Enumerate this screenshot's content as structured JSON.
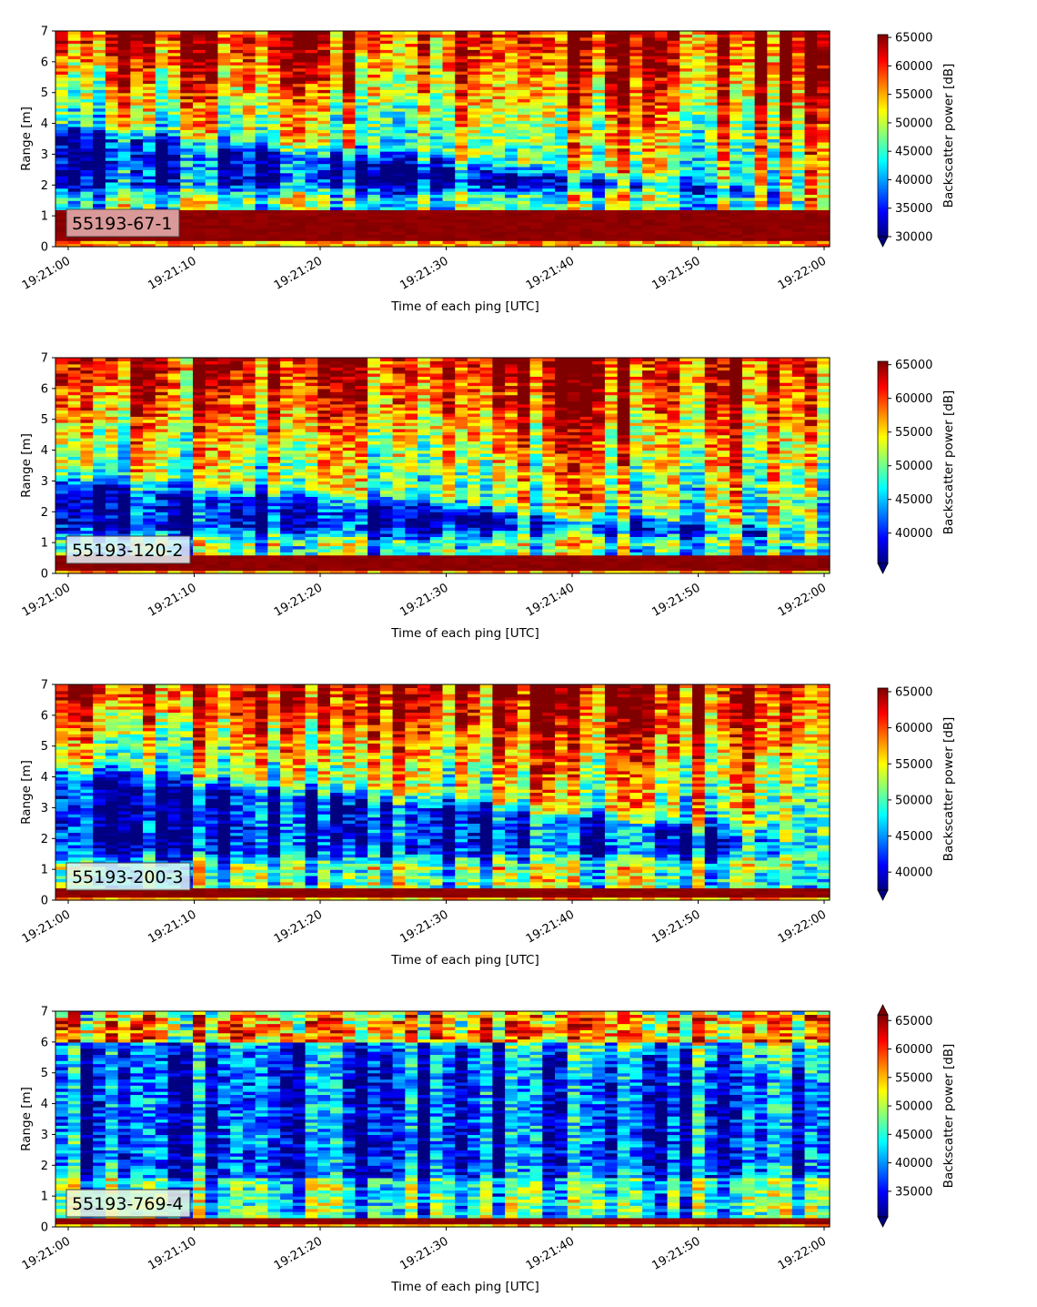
{
  "chart_data": [
    {
      "type": "heatmap",
      "id": "55193-67-1",
      "label": "55193-67-1",
      "xlabel": "Time of each ping [UTC]",
      "ylabel": "Range [m]",
      "x_ticks": [
        "19:21:00",
        "19:21:10",
        "19:21:20",
        "19:21:30",
        "19:21:40",
        "19:21:50",
        "19:22:00"
      ],
      "x_range": [
        "19:21:00",
        "19:22:00"
      ],
      "y_ticks": [
        0,
        1,
        2,
        3,
        4,
        5,
        6,
        7
      ],
      "ylim": [
        0,
        7
      ],
      "colormap": "jet",
      "colorbar_label": "Backscatter power [dB]",
      "colorbar_ticks": [
        30000,
        35000,
        40000,
        45000,
        50000,
        55000,
        60000,
        65000
      ],
      "vmin": 30000,
      "vmax": 65500,
      "extend": "min",
      "near_field_band_m": [
        0.25,
        1.15
      ],
      "low_zone": {
        "bottom_m": 1.5,
        "top_start_m": 4.2,
        "top_end_m": 1.9,
        "pings_end": 0.95
      },
      "label_box_color": "#e8b4b4"
    },
    {
      "type": "heatmap",
      "id": "55193-120-2",
      "label": "55193-120-2",
      "xlabel": "Time of each ping [UTC]",
      "ylabel": "Range [m]",
      "x_ticks": [
        "19:21:00",
        "19:21:10",
        "19:21:20",
        "19:21:30",
        "19:21:40",
        "19:21:50",
        "19:22:00"
      ],
      "x_range": [
        "19:21:00",
        "19:22:00"
      ],
      "y_ticks": [
        0,
        1,
        2,
        3,
        4,
        5,
        6,
        7
      ],
      "ylim": [
        0,
        7
      ],
      "colormap": "jet",
      "colorbar_label": "Backscatter power [dB]",
      "colorbar_ticks": [
        40000,
        45000,
        50000,
        55000,
        60000,
        65000
      ],
      "vmin": 35500,
      "vmax": 65500,
      "extend": "min",
      "near_field_band_m": [
        0.1,
        0.55
      ],
      "low_zone": {
        "bottom_m": 0.9,
        "top_start_m": 3.4,
        "top_end_m": 1.6,
        "pings_end": 0.9
      },
      "label_box_color": "#e6f2f8"
    },
    {
      "type": "heatmap",
      "id": "55193-200-3",
      "label": "55193-200-3",
      "xlabel": "Time of each ping [UTC]",
      "ylabel": "Range [m]",
      "x_ticks": [
        "19:21:00",
        "19:21:10",
        "19:21:20",
        "19:21:30",
        "19:21:40",
        "19:21:50",
        "19:22:00"
      ],
      "x_range": [
        "19:21:00",
        "19:22:00"
      ],
      "y_ticks": [
        0,
        1,
        2,
        3,
        4,
        5,
        6,
        7
      ],
      "ylim": [
        0,
        7
      ],
      "colormap": "jet",
      "colorbar_label": "Backscatter power [dB]",
      "colorbar_ticks": [
        40000,
        45000,
        50000,
        55000,
        60000,
        65000
      ],
      "vmin": 37500,
      "vmax": 65500,
      "extend": "min",
      "near_field_band_m": [
        0.15,
        0.4
      ],
      "low_zone": {
        "bottom_m": 1.0,
        "top_start_m": 4.6,
        "top_end_m": 2.4,
        "pings_end": 0.85
      },
      "label_box_color": "#dff6f0"
    },
    {
      "type": "heatmap",
      "id": "55193-769-4",
      "label": "55193-769-4",
      "xlabel": "Time of each ping [UTC]",
      "ylabel": "Range [m]",
      "x_ticks": [
        "19:21:00",
        "19:21:10",
        "19:21:20",
        "19:21:30",
        "19:21:40",
        "19:21:50",
        "19:22:00"
      ],
      "x_range": [
        "19:21:00",
        "19:22:00"
      ],
      "y_ticks": [
        0,
        1,
        2,
        3,
        4,
        5,
        6,
        7
      ],
      "ylim": [
        0,
        7
      ],
      "colormap": "jet",
      "colorbar_label": "Backscatter power [dB]",
      "colorbar_ticks": [
        35000,
        40000,
        45000,
        50000,
        55000,
        60000,
        65000
      ],
      "vmin": 30500,
      "vmax": 66000,
      "extend": "both",
      "near_field_band_m": [
        0.15,
        0.35
      ],
      "low_zone": {
        "bottom_m": 1.6,
        "top_start_m": 6.0,
        "top_end_m": 4.6,
        "pings_end": 1.0
      },
      "label_box_color": "#f0f8dc"
    }
  ]
}
